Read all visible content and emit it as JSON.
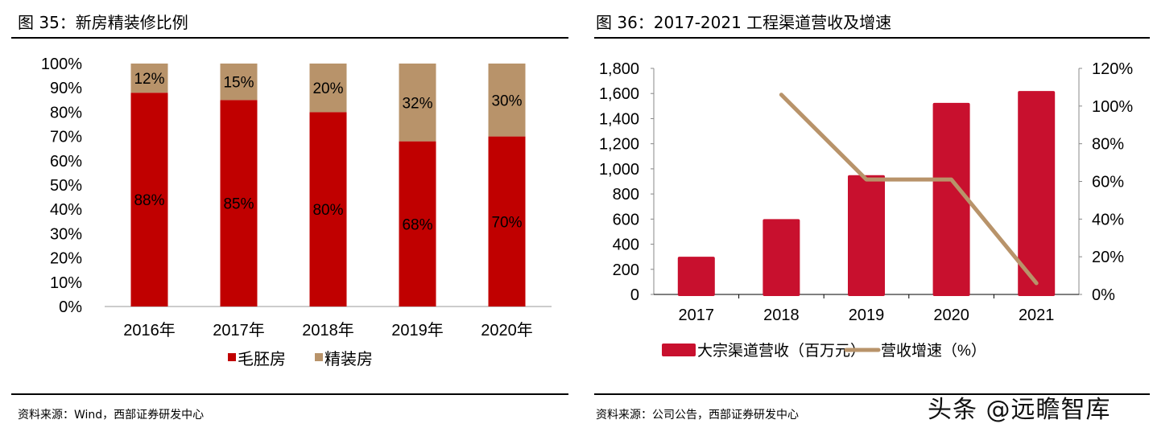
{
  "left": {
    "title": "图 35：新房精装修比例",
    "source": "资料来源：Wind，西部证券研发中心"
  },
  "right": {
    "title": "图 36：2017-2021 工程渠道营收及增速",
    "source": "资料来源：公司公告，西部证券研发中心"
  },
  "watermark": "头条 @远瞻智库",
  "chart_data": [
    {
      "type": "bar",
      "stacked": true,
      "title": "新房精装修比例",
      "categories": [
        "2016年",
        "2017年",
        "2018年",
        "2019年",
        "2020年"
      ],
      "series": [
        {
          "name": "毛胚房",
          "values": [
            88,
            85,
            80,
            68,
            70
          ],
          "labels": [
            "88%",
            "85%",
            "80%",
            "68%",
            "70%"
          ],
          "color": "#C00000"
        },
        {
          "name": "精装房",
          "values": [
            12,
            15,
            20,
            32,
            30
          ],
          "labels": [
            "12%",
            "15%",
            "20%",
            "32%",
            "30%"
          ],
          "color": "#B8936A"
        }
      ],
      "ylim": [
        0,
        100
      ],
      "yticks": [
        "0%",
        "10%",
        "20%",
        "30%",
        "40%",
        "50%",
        "60%",
        "70%",
        "80%",
        "90%",
        "100%"
      ],
      "legend": "bottom",
      "grid": false
    },
    {
      "type": "bar+line",
      "title": "2017-2021 工程渠道营收及增速",
      "categories": [
        "2017",
        "2018",
        "2019",
        "2020",
        "2021"
      ],
      "series": [
        {
          "name": "大宗渠道营收（百万元）",
          "type": "bar",
          "axis": "left",
          "values": [
            300,
            600,
            950,
            1525,
            1620
          ],
          "color": "#C8102E"
        },
        {
          "name": "营收增速（%）",
          "type": "line",
          "axis": "right",
          "values": [
            null,
            106,
            61,
            61,
            6
          ],
          "color": "#B8936A"
        }
      ],
      "ylim": [
        0,
        1800
      ],
      "yticks": [
        "0",
        "200",
        "400",
        "600",
        "800",
        "1,000",
        "1,200",
        "1,400",
        "1,600",
        "1,800"
      ],
      "y2lim": [
        0,
        120
      ],
      "y2ticks": [
        "0%",
        "20%",
        "40%",
        "60%",
        "80%",
        "100%",
        "120%"
      ],
      "legend": "bottom",
      "grid": false
    }
  ]
}
